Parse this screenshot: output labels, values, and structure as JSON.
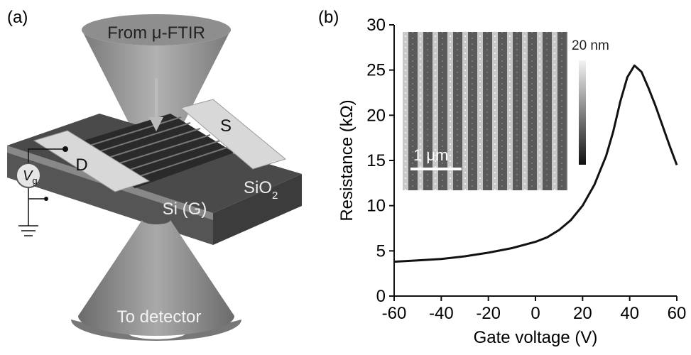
{
  "diagram": {
    "panel_label": "(a)",
    "source_label": "From μ-FTIR",
    "drain_label": "D",
    "source_electrode_label": "S",
    "gate_voltage_label": {
      "text": "V",
      "sub": "g"
    },
    "oxide_label": {
      "text": "SiO",
      "sub": "2"
    },
    "substrate_label": "Si (G)",
    "detector_label": "To detector"
  },
  "chart_data": {
    "type": "line",
    "panel_label": "(b)",
    "x_label": "Gate voltage (V)",
    "y_label": "Resistance (kΩ)",
    "x": [
      -60,
      -50,
      -40,
      -30,
      -20,
      -10,
      0,
      5,
      10,
      15,
      20,
      25,
      30,
      33,
      36,
      39,
      42,
      45,
      48,
      51,
      54,
      57,
      60
    ],
    "values": [
      3.8,
      3.95,
      4.1,
      4.4,
      4.8,
      5.3,
      6.0,
      6.5,
      7.3,
      8.4,
      10.0,
      12.3,
      15.5,
      18.2,
      21.5,
      24.2,
      25.5,
      24.8,
      23.0,
      21.0,
      18.8,
      16.6,
      14.5
    ],
    "color": "#111111",
    "xlim": [
      -60,
      60
    ],
    "xticks": [
      -60,
      -40,
      -20,
      0,
      20,
      40,
      60
    ],
    "ylim": [
      0,
      30
    ],
    "yticks": [
      0,
      5,
      10,
      15,
      20,
      25,
      30
    ],
    "inset_colorbar_label": "20 nm",
    "inset_scalebar_label": "1 μm"
  }
}
